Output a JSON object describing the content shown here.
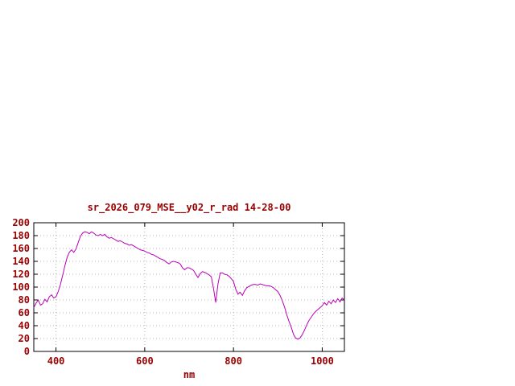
{
  "window": {
    "background": "#ffffff"
  },
  "chart_data": {
    "type": "line",
    "title": "sr_2026_079_MSE__y02_r_rad 14-28-00",
    "xlabel": "nm",
    "ylabel": "",
    "xlim": [
      350,
      1050
    ],
    "ylim": [
      0,
      200
    ],
    "x_ticks": [
      400,
      600,
      800,
      1000
    ],
    "y_ticks": [
      0,
      20,
      40,
      60,
      80,
      100,
      120,
      140,
      160,
      180,
      200
    ],
    "grid": true,
    "legend_position": "none",
    "line_color": "#b800b8",
    "text_color": "#990000",
    "series": [
      {
        "name": "sr_2026_079_MSE__y02_r_rad",
        "x_start": 350,
        "x_step": 5,
        "values": [
          68,
          75,
          80,
          72,
          74,
          81,
          77,
          85,
          88,
          83,
          85,
          93,
          104,
          118,
          133,
          146,
          154,
          158,
          154,
          159,
          169,
          179,
          184,
          186,
          185,
          183,
          186,
          184,
          181,
          180,
          182,
          180,
          182,
          178,
          176,
          177,
          175,
          173,
          171,
          172,
          170,
          168,
          167,
          165,
          166,
          164,
          162,
          160,
          158,
          157,
          156,
          154,
          153,
          151,
          150,
          148,
          146,
          144,
          143,
          141,
          138,
          136,
          139,
          140,
          139,
          138,
          136,
          130,
          127,
          130,
          130,
          128,
          126,
          120,
          115,
          121,
          124,
          123,
          121,
          119,
          116,
          98,
          76,
          104,
          122,
          122,
          120,
          119,
          117,
          113,
          109,
          97,
          89,
          92,
          87,
          94,
          99,
          101,
          103,
          104,
          104,
          103,
          105,
          104,
          103,
          102,
          102,
          101,
          99,
          96,
          93,
          87,
          79,
          69,
          57,
          47,
          38,
          27,
          21,
          19,
          21,
          26,
          33,
          41,
          48,
          53,
          58,
          62,
          65,
          68,
          71,
          76,
          72,
          78,
          74,
          80,
          76,
          82,
          77,
          83,
          80
        ]
      }
    ]
  }
}
